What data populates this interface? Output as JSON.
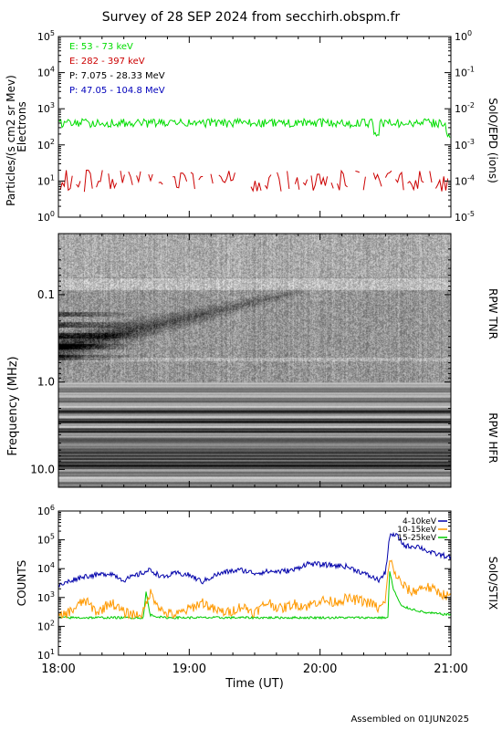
{
  "header": {
    "title": "Survey of 28 SEP 2024 from secchirh.obspm.fr",
    "footer": "Assembled on 01JUN2025"
  },
  "colors": {
    "electrons_low": "#00dd00",
    "electrons_high": "#cc0000",
    "protons_low": "#000000",
    "protons_high": "#0000bb",
    "stix_4_10": "#0000aa",
    "stix_10_15": "#ff9900",
    "stix_15_25": "#00cc00"
  },
  "chart_data": [
    {
      "type": "line",
      "panel": "SolO/EPD",
      "ylabel_left": "Particles/(s cm2 sr Mev)",
      "ylabel_left2": "Electrons",
      "ylabel_right": "SolO/EPD (ions)",
      "yscale": "log",
      "ylim": [
        1,
        100000
      ],
      "yticks_left": [
        "10^0",
        "10^1",
        "10^2",
        "10^3",
        "10^4",
        "10^5"
      ],
      "yticks_right": [
        "10^-5",
        "10^-4",
        "10^-3",
        "10^-2",
        "10^-1",
        "10^0"
      ],
      "x_range_ut": [
        "18:00",
        "21:00"
      ],
      "legend": [
        {
          "label": "E: 53 - 73 keV",
          "color": "#00dd00"
        },
        {
          "label": "E: 282 - 397 keV",
          "color": "#cc0000"
        },
        {
          "label": "P: 7.075 - 28.33 MeV",
          "color": "#000000"
        },
        {
          "label": "P: 47.05 - 104.8 MeV",
          "color": "#0000bb"
        }
      ],
      "series": [
        {
          "name": "E: 53 - 73 keV",
          "level": 400,
          "spread_decades": 0.12
        },
        {
          "name": "E: 282 - 397 keV",
          "level": 10,
          "min": 5,
          "max": 20
        }
      ]
    },
    {
      "type": "heatmap",
      "panel": "RPW",
      "ylabel": "Frequency (MHz)",
      "yscale": "log",
      "ylim_mhz": [
        0.02,
        16
      ],
      "yticks": [
        "0.1",
        "1.0",
        "10.0"
      ],
      "right_labels": [
        "RPW TNR",
        "RPW HFR"
      ],
      "x_range_ut": [
        "18:00",
        "21:00"
      ],
      "tnr_hfr_boundary_mhz": 1.0,
      "radio_burst": {
        "start_ut": "18:00",
        "end_ut": "19:50",
        "freq_start_mhz": 0.4,
        "freq_end_mhz": 0.09
      }
    },
    {
      "type": "line",
      "panel": "SolO/STIX",
      "ylabel": "COUNTS",
      "ylabel_right": "SolO/STIX",
      "yscale": "log",
      "ylim": [
        10,
        1000000
      ],
      "yticks": [
        "10^1",
        "10^2",
        "10^3",
        "10^4",
        "10^5",
        "10^6"
      ],
      "xlabel": "Time (UT)",
      "xticks": [
        "18:00",
        "19:00",
        "20:00",
        "21:00"
      ],
      "x_range_hours": [
        18,
        21
      ],
      "legend": [
        {
          "label": "4-10keV",
          "color": "#0000aa"
        },
        {
          "label": "10-15keV",
          "color": "#ff9900"
        },
        {
          "label": "15-25keV",
          "color": "#00cc00"
        }
      ],
      "series": [
        {
          "name": "4-10keV",
          "x": [
            18.0,
            18.1,
            18.2,
            18.3,
            18.4,
            18.5,
            18.6,
            18.7,
            18.8,
            18.9,
            19.0,
            19.1,
            19.2,
            19.3,
            19.4,
            19.5,
            19.6,
            19.7,
            19.8,
            19.9,
            20.0,
            20.1,
            20.2,
            20.3,
            20.4,
            20.45,
            20.5,
            20.53,
            20.58,
            20.65,
            20.75,
            20.85,
            21.0
          ],
          "values": [
            2500,
            4000,
            5500,
            6000,
            7000,
            4000,
            6000,
            9000,
            5000,
            7000,
            6000,
            3500,
            6000,
            8000,
            9000,
            7000,
            8000,
            8000,
            9000,
            15000,
            14000,
            13000,
            12000,
            8000,
            5000,
            4000,
            7000,
            130000,
            150000,
            60000,
            60000,
            35000,
            25000
          ]
        },
        {
          "name": "10-15keV",
          "x": [
            18.0,
            18.1,
            18.2,
            18.3,
            18.4,
            18.5,
            18.6,
            18.65,
            18.7,
            18.75,
            18.8,
            18.9,
            19.0,
            19.1,
            19.2,
            19.3,
            19.4,
            19.5,
            19.6,
            19.7,
            19.8,
            19.9,
            20.0,
            20.1,
            20.2,
            20.3,
            20.4,
            20.45,
            20.5,
            20.53,
            20.56,
            20.62,
            20.7,
            20.8,
            21.0
          ],
          "values": [
            200,
            350,
            800,
            300,
            700,
            300,
            250,
            300,
            1500,
            700,
            300,
            250,
            400,
            700,
            350,
            300,
            500,
            300,
            700,
            400,
            600,
            500,
            800,
            700,
            900,
            800,
            600,
            400,
            700,
            25000,
            9000,
            3000,
            1500,
            2500,
            1000
          ]
        },
        {
          "name": "15-25keV",
          "x": [
            18.0,
            18.2,
            18.4,
            18.6,
            18.65,
            18.67,
            18.7,
            18.8,
            19.0,
            19.2,
            19.4,
            19.6,
            19.8,
            20.0,
            20.2,
            20.4,
            20.48,
            20.52,
            20.53,
            20.56,
            20.62,
            20.7,
            20.8,
            21.0
          ],
          "values": [
            200,
            200,
            200,
            200,
            200,
            1600,
            250,
            200,
            200,
            200,
            200,
            200,
            200,
            200,
            200,
            200,
            200,
            200,
            9000,
            2000,
            500,
            400,
            300,
            250
          ]
        }
      ]
    }
  ]
}
